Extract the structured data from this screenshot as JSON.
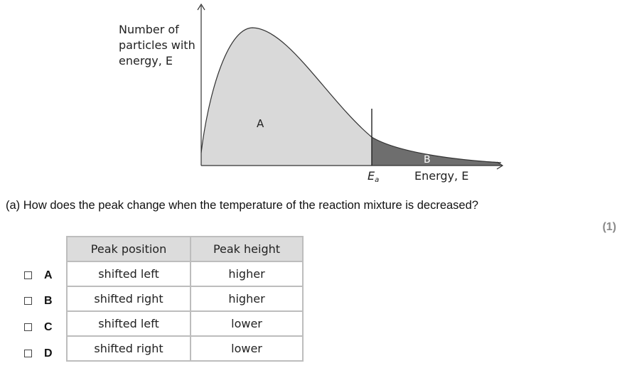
{
  "graph": {
    "ylabel_lines": [
      "Number of",
      "particles with",
      "energy, E"
    ],
    "region_a_label": "A",
    "region_b_label": "B",
    "ea_label": "E",
    "ea_subscript": "a",
    "xlabel": "Energy, E"
  },
  "question": {
    "text": "(a) How does the peak change when the temperature of the reaction mixture is decreased?",
    "marks": "(1)"
  },
  "table": {
    "headers": [
      "Peak position",
      "Peak height"
    ],
    "rows": [
      {
        "letter": "A",
        "position": "shifted left",
        "height": "higher"
      },
      {
        "letter": "B",
        "position": "shifted right",
        "height": "higher"
      },
      {
        "letter": "C",
        "position": "shifted left",
        "height": "lower"
      },
      {
        "letter": "D",
        "position": "shifted right",
        "height": "lower"
      }
    ]
  },
  "colors": {
    "region_a": "#d9d9d9",
    "region_b": "#6e6e6e"
  }
}
